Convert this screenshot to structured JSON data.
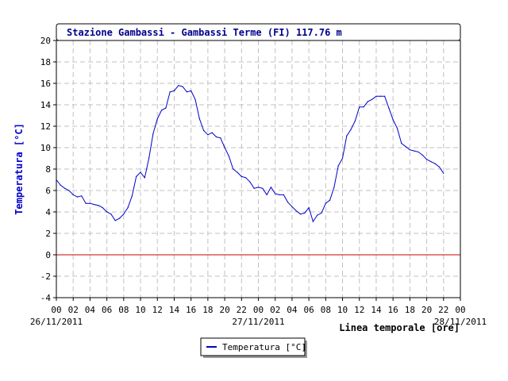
{
  "chart_data": {
    "type": "line",
    "title": "Stazione Gambassi - Gambassi Terme (FI) 117.76 m",
    "xlabel": "Linea temporale [ore]",
    "ylabel": "Temperatura [°C]",
    "ylim": [
      -4,
      20
    ],
    "yticks": [
      -4,
      -2,
      0,
      2,
      4,
      6,
      8,
      10,
      12,
      14,
      16,
      18,
      20
    ],
    "xlim": [
      0,
      48
    ],
    "xtick_hours": [
      0,
      2,
      4,
      6,
      8,
      10,
      12,
      14,
      16,
      18,
      20,
      22,
      24,
      26,
      28,
      30,
      32,
      34,
      36,
      38,
      40,
      42,
      44,
      46,
      48
    ],
    "xtick_labels": [
      "00",
      "02",
      "04",
      "06",
      "08",
      "10",
      "12",
      "14",
      "16",
      "18",
      "20",
      "22",
      "00",
      "02",
      "04",
      "06",
      "08",
      "10",
      "12",
      "14",
      "16",
      "18",
      "20",
      "22",
      "00"
    ],
    "date_labels": [
      {
        "hour": 0,
        "text": "26/11/2011"
      },
      {
        "hour": 24,
        "text": "27/11/2011"
      },
      {
        "hour": 48,
        "text": "28/11/2011"
      }
    ],
    "grid": true,
    "reference_line": {
      "y": 0,
      "color": "#cc0000"
    },
    "legend": {
      "position": "bottom-center",
      "entries": [
        "Temperatura [°C]"
      ]
    },
    "series": [
      {
        "name": "Temperatura [°C]",
        "color": "#0000cc",
        "x": [
          0,
          0.5,
          1,
          1.5,
          2,
          2.5,
          3,
          3.5,
          4,
          4.5,
          5,
          5.5,
          6,
          6.5,
          7,
          7.5,
          8,
          8.5,
          9,
          9.5,
          10,
          10.5,
          11,
          11.5,
          12,
          12.5,
          13,
          13.5,
          14,
          14.5,
          15,
          15.5,
          16,
          16.5,
          17,
          17.5,
          18,
          18.5,
          19,
          19.5,
          20,
          20.5,
          21,
          21.5,
          22,
          22.5,
          23,
          23.5,
          24,
          24.5,
          25,
          25.5,
          26,
          26.5,
          27,
          27.5,
          28,
          28.5,
          29,
          29.5,
          30,
          30.5,
          31,
          31.5,
          32,
          32.5,
          33,
          33.5,
          34,
          34.5,
          35,
          35.5,
          36,
          36.5,
          37,
          37.5,
          38,
          38.5,
          39,
          39.5,
          40,
          40.5,
          41,
          41.5,
          42,
          42.5,
          43,
          43.5,
          44,
          44.5,
          45,
          45.5,
          46
        ],
        "values": [
          7.0,
          6.5,
          6.2,
          6.0,
          5.6,
          5.4,
          5.5,
          4.8,
          4.8,
          4.7,
          4.6,
          4.4,
          4.0,
          3.8,
          3.2,
          3.4,
          3.8,
          4.4,
          5.5,
          7.3,
          7.7,
          7.2,
          9.0,
          11.3,
          12.7,
          13.5,
          13.7,
          15.2,
          15.3,
          15.8,
          15.7,
          15.2,
          15.3,
          14.5,
          12.7,
          11.6,
          11.2,
          11.4,
          11.0,
          10.9,
          10.0,
          9.2,
          8.0,
          7.7,
          7.3,
          7.2,
          6.8,
          6.2,
          6.3,
          6.2,
          5.6,
          6.3,
          5.7,
          5.6,
          5.6,
          4.9,
          4.5,
          4.1,
          3.8,
          3.9,
          4.4,
          3.1,
          3.7,
          3.9,
          4.8,
          5.1,
          6.3,
          8.3,
          9.0,
          11.1,
          11.7,
          12.5,
          13.8,
          13.8,
          14.3,
          14.5,
          14.8,
          14.8,
          14.8,
          13.7,
          12.6,
          11.8,
          10.4,
          10.1,
          9.8,
          9.7,
          9.6,
          9.3,
          8.9,
          8.7,
          8.5,
          8.2,
          7.6
        ]
      }
    ]
  }
}
